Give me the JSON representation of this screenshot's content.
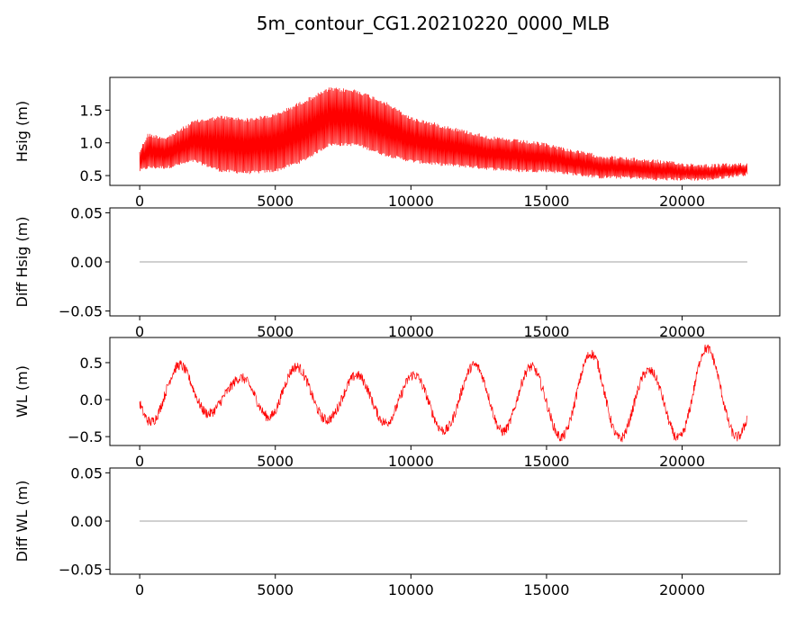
{
  "chart_data": {
    "type": "line",
    "title": "5m_contour_CG1.20210220_0000_MLB",
    "panels": [
      {
        "id": "hsig",
        "ylabel": "Hsig (m)",
        "xlim": [
          -1100,
          23600
        ],
        "ylim": [
          0.35,
          2.0
        ],
        "yticks": [
          0.5,
          1.0,
          1.5
        ],
        "ytick_labels": [
          "0.5",
          "1.0",
          "1.5"
        ],
        "xticks": [
          0,
          5000,
          10000,
          15000,
          20000
        ],
        "xtick_labels": [
          "0",
          "5000",
          "10000",
          "15000",
          "20000"
        ],
        "series": [
          {
            "name": "Hsig",
            "color": "#ff0000",
            "x_range": [
              0,
              22400
            ],
            "samples": 1200,
            "signal": {
              "kind": "oscillating_envelope",
              "oscillation_period": 260,
              "upper": {
                "x": [
                  0,
                  300,
                  1000,
                  2000,
                  3000,
                  4000,
                  5000,
                  6000,
                  7000,
                  8000,
                  9000,
                  10000,
                  11000,
                  12000,
                  13000,
                  14000,
                  15000,
                  16000,
                  17000,
                  18000,
                  19000,
                  20000,
                  21000,
                  22400
                ],
                "y": [
                  0.9,
                  1.15,
                  1.1,
                  1.35,
                  1.42,
                  1.38,
                  1.45,
                  1.65,
                  1.85,
                  1.82,
                  1.65,
                  1.4,
                  1.3,
                  1.2,
                  1.1,
                  1.05,
                  1.0,
                  0.9,
                  0.82,
                  0.78,
                  0.75,
                  0.7,
                  0.68,
                  0.7
                ]
              },
              "lower": {
                "x": [
                  0,
                  300,
                  1000,
                  2000,
                  3000,
                  4000,
                  5000,
                  6000,
                  7000,
                  8000,
                  9000,
                  10000,
                  11000,
                  12000,
                  13000,
                  14000,
                  15000,
                  16000,
                  17000,
                  18000,
                  19000,
                  20000,
                  21000,
                  22400
                ],
                "y": [
                  0.55,
                  0.6,
                  0.6,
                  0.7,
                  0.55,
                  0.52,
                  0.55,
                  0.7,
                  0.95,
                  0.95,
                  0.8,
                  0.7,
                  0.65,
                  0.62,
                  0.58,
                  0.55,
                  0.55,
                  0.5,
                  0.45,
                  0.45,
                  0.42,
                  0.42,
                  0.42,
                  0.5
                ]
              }
            }
          }
        ]
      },
      {
        "id": "diff_hsig",
        "ylabel": "Diff Hsig (m)",
        "xlim": [
          -1100,
          23600
        ],
        "ylim": [
          -0.055,
          0.055
        ],
        "yticks": [
          -0.05,
          0.0,
          0.05
        ],
        "ytick_labels": [
          "−0.05",
          "0.00",
          "0.05"
        ],
        "xticks": [
          0,
          5000,
          10000,
          15000,
          20000
        ],
        "xtick_labels": [
          "0",
          "5000",
          "10000",
          "15000",
          "20000"
        ],
        "series": [
          {
            "name": "Diff Hsig",
            "color": "#a0a0a0",
            "x_range": [
              0,
              22400
            ],
            "samples": 2,
            "signal": {
              "kind": "constant",
              "value": 0.0
            }
          }
        ]
      },
      {
        "id": "wl",
        "ylabel": "WL (m)",
        "xlim": [
          -1100,
          23600
        ],
        "ylim": [
          -0.62,
          0.84
        ],
        "yticks": [
          -0.5,
          0.0,
          0.5
        ],
        "ytick_labels": [
          "−0.5",
          "0.0",
          "0.5"
        ],
        "xticks": [
          0,
          5000,
          10000,
          15000,
          20000
        ],
        "xtick_labels": [
          "0",
          "5000",
          "10000",
          "15000",
          "20000"
        ],
        "series": [
          {
            "name": "WL",
            "color": "#ff0000",
            "x_range": [
              0,
              22400
            ],
            "samples": 1400,
            "signal": {
              "kind": "tidal",
              "tide_period": 2160,
              "phase_peak_x": 1500,
              "noise": 0.07,
              "amplitude_by_cycle": [
                {
                  "x": 0,
                  "hi": 0.55,
                  "lo": -0.35
                },
                {
                  "x": 1500,
                  "hi": 0.5,
                  "lo": -0.3
                },
                {
                  "x": 3300,
                  "hi": 0.25,
                  "lo": -0.15
                },
                {
                  "x": 5200,
                  "hi": 0.55,
                  "lo": -0.3
                },
                {
                  "x": 7200,
                  "hi": 0.3,
                  "lo": -0.3
                },
                {
                  "x": 9300,
                  "hi": 0.45,
                  "lo": -0.35
                },
                {
                  "x": 11000,
                  "hi": 0.28,
                  "lo": -0.45
                },
                {
                  "x": 13000,
                  "hi": 0.62,
                  "lo": -0.45
                },
                {
                  "x": 14800,
                  "hi": 0.45,
                  "lo": -0.55
                },
                {
                  "x": 16900,
                  "hi": 0.7,
                  "lo": -0.55
                },
                {
                  "x": 18800,
                  "hi": 0.42,
                  "lo": -0.6
                },
                {
                  "x": 20700,
                  "hi": 0.78,
                  "lo": -0.55
                },
                {
                  "x": 22400,
                  "hi": 0.5,
                  "lo": -0.55
                }
              ]
            }
          }
        ]
      },
      {
        "id": "diff_wl",
        "ylabel": "Diff WL (m)",
        "xlim": [
          -1100,
          23600
        ],
        "ylim": [
          -0.055,
          0.055
        ],
        "yticks": [
          -0.05,
          0.0,
          0.05
        ],
        "ytick_labels": [
          "−0.05",
          "0.00",
          "0.05"
        ],
        "xticks": [
          0,
          5000,
          10000,
          15000,
          20000
        ],
        "xtick_labels": [
          "0",
          "5000",
          "10000",
          "15000",
          "20000"
        ],
        "series": [
          {
            "name": "Diff WL",
            "color": "#a0a0a0",
            "x_range": [
              0,
              22400
            ],
            "samples": 2,
            "signal": {
              "kind": "constant",
              "value": 0.0
            }
          }
        ]
      }
    ]
  }
}
